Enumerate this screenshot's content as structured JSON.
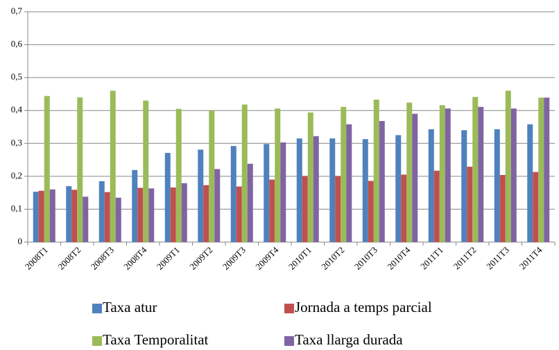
{
  "chart_data": {
    "type": "bar",
    "categories": [
      "2008T1",
      "2008T2",
      "2008T3",
      "2008T4",
      "2009T1",
      "2009T2",
      "2009T3",
      "2009T4",
      "2010T1",
      "2010T2",
      "2010T3",
      "2010T4",
      "2011T1",
      "2011T2",
      "2011T3",
      "2011T4"
    ],
    "series": [
      {
        "name": "Taxa atur",
        "color": "#4f81bd",
        "values": [
          0.153,
          0.17,
          0.185,
          0.219,
          0.271,
          0.281,
          0.292,
          0.298,
          0.315,
          0.315,
          0.313,
          0.325,
          0.343,
          0.34,
          0.343,
          0.358
        ]
      },
      {
        "name": "Jornada a temps parcial",
        "color": "#c0504d",
        "values": [
          0.156,
          0.159,
          0.152,
          0.165,
          0.166,
          0.173,
          0.169,
          0.19,
          0.201,
          0.201,
          0.186,
          0.205,
          0.217,
          0.229,
          0.204,
          0.213
        ]
      },
      {
        "name": "Taxa Temporalitat",
        "color": "#9bbb59",
        "values": [
          0.444,
          0.44,
          0.46,
          0.43,
          0.405,
          0.4,
          0.418,
          0.406,
          0.394,
          0.411,
          0.433,
          0.424,
          0.416,
          0.441,
          0.46,
          0.439
        ]
      },
      {
        "name": "Taxa llarga durada",
        "color": "#8064a2",
        "values": [
          0.16,
          0.138,
          0.135,
          0.163,
          0.179,
          0.222,
          0.238,
          0.303,
          0.322,
          0.358,
          0.368,
          0.39,
          0.406,
          0.411,
          0.406,
          0.439
        ]
      }
    ],
    "ylim": [
      0,
      0.7
    ],
    "yticks": [
      0,
      {
        "value": 0.1,
        "label": "0,1"
      },
      {
        "value": 0.2,
        "label": "0,2"
      },
      {
        "value": 0.3,
        "label": "0,3"
      },
      {
        "value": 0.4,
        "label": "0,4"
      },
      {
        "value": 0.5,
        "label": "0,5"
      },
      {
        "value": 0.6,
        "label": "0,6"
      },
      {
        "value": 0.7,
        "label": "0,7"
      }
    ],
    "grid": true,
    "legend": "bottom"
  }
}
